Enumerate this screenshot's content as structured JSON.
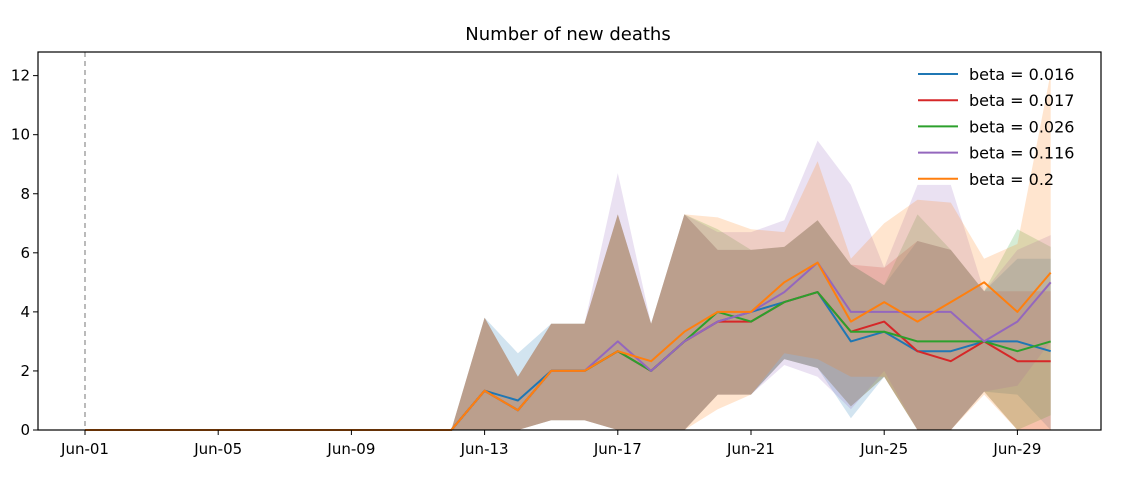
{
  "chart_data": {
    "type": "line",
    "title": "Number of new deaths",
    "xlabel": "",
    "ylabel": "",
    "x": [
      "Jun-01",
      "Jun-02",
      "Jun-03",
      "Jun-04",
      "Jun-05",
      "Jun-06",
      "Jun-07",
      "Jun-08",
      "Jun-09",
      "Jun-10",
      "Jun-11",
      "Jun-12",
      "Jun-13",
      "Jun-14",
      "Jun-15",
      "Jun-16",
      "Jun-17",
      "Jun-18",
      "Jun-19",
      "Jun-20",
      "Jun-21",
      "Jun-22",
      "Jun-23",
      "Jun-24",
      "Jun-25",
      "Jun-26",
      "Jun-27",
      "Jun-28",
      "Jun-29",
      "Jun-30"
    ],
    "x_tick_labels": [
      "Jun-01",
      "Jun-05",
      "Jun-09",
      "Jun-13",
      "Jun-17",
      "Jun-21",
      "Jun-25",
      "Jun-29"
    ],
    "y_ticks": [
      0,
      2,
      4,
      6,
      8,
      10,
      12
    ],
    "ylim": [
      0,
      12.8
    ],
    "vline_x": "Jun-01",
    "legend_position": "top-right",
    "grid": false,
    "series": [
      {
        "name": "beta = 0.016",
        "color": "#1f77b4",
        "values": [
          0,
          0,
          0,
          0,
          0,
          0,
          0,
          0,
          0,
          0,
          0,
          0,
          1.33,
          1.0,
          2.0,
          2.0,
          2.67,
          2.0,
          3.0,
          3.67,
          4.0,
          4.33,
          4.67,
          3.0,
          3.33,
          2.67,
          2.67,
          3.0,
          3.0,
          2.67
        ],
        "lower": [
          0,
          0,
          0,
          0,
          0,
          0,
          0,
          0,
          0,
          0,
          0,
          0,
          0,
          0,
          0.33,
          0.33,
          0,
          0,
          0,
          1.2,
          1.2,
          2.4,
          2.1,
          0.4,
          1.8,
          0,
          0,
          1.3,
          1.2,
          0
        ],
        "upper": [
          0,
          0,
          0,
          0,
          0,
          0,
          0,
          0,
          0,
          0,
          0,
          0,
          3.8,
          2.6,
          3.6,
          3.6,
          7.3,
          3.6,
          7.3,
          6.1,
          6.1,
          6.2,
          7.1,
          5.6,
          4.9,
          6.4,
          6.1,
          4.7,
          5.8,
          5.8
        ]
      },
      {
        "name": "beta = 0.017",
        "color": "#d62728",
        "values": [
          0,
          0,
          0,
          0,
          0,
          0,
          0,
          0,
          0,
          0,
          0,
          0,
          1.33,
          0.67,
          2.0,
          2.0,
          2.67,
          2.0,
          3.0,
          3.67,
          3.67,
          4.33,
          4.67,
          3.33,
          3.67,
          2.67,
          2.33,
          3.0,
          2.33,
          2.33
        ],
        "lower": [
          0,
          0,
          0,
          0,
          0,
          0,
          0,
          0,
          0,
          0,
          0,
          0,
          0,
          0,
          0.33,
          0.33,
          0,
          0,
          0,
          1.2,
          1.2,
          2.4,
          2.1,
          0.8,
          1.8,
          0,
          0,
          1.3,
          0,
          0
        ],
        "upper": [
          0,
          0,
          0,
          0,
          0,
          0,
          0,
          0,
          0,
          0,
          0,
          0,
          3.8,
          1.8,
          3.6,
          3.6,
          7.3,
          3.6,
          7.3,
          6.1,
          6.1,
          6.2,
          7.1,
          5.6,
          5.5,
          6.4,
          6.1,
          4.7,
          4.7,
          4.7
        ]
      },
      {
        "name": "beta = 0.026",
        "color": "#2ca02c",
        "values": [
          0,
          0,
          0,
          0,
          0,
          0,
          0,
          0,
          0,
          0,
          0,
          0,
          1.33,
          0.67,
          2.0,
          2.0,
          2.67,
          2.0,
          3.0,
          4.0,
          3.67,
          4.33,
          4.67,
          3.33,
          3.33,
          3.0,
          3.0,
          3.0,
          2.67,
          3.0
        ],
        "lower": [
          0,
          0,
          0,
          0,
          0,
          0,
          0,
          0,
          0,
          0,
          0,
          0,
          0,
          0,
          0.33,
          0.33,
          0,
          0,
          0,
          1.2,
          1.2,
          2.4,
          2.1,
          0.8,
          1.8,
          0,
          0,
          1.3,
          0,
          0.5
        ],
        "upper": [
          0,
          0,
          0,
          0,
          0,
          0,
          0,
          0,
          0,
          0,
          0,
          0,
          3.8,
          1.8,
          3.6,
          3.6,
          7.3,
          3.6,
          7.3,
          6.8,
          6.1,
          6.2,
          7.1,
          5.6,
          4.9,
          7.3,
          6.1,
          4.7,
          6.8,
          6.2
        ]
      },
      {
        "name": "beta = 0.116",
        "color": "#9467bd",
        "values": [
          0,
          0,
          0,
          0,
          0,
          0,
          0,
          0,
          0,
          0,
          0,
          0,
          1.33,
          0.67,
          2.0,
          2.0,
          3.0,
          2.0,
          3.0,
          3.67,
          4.0,
          4.67,
          5.67,
          4.0,
          4.0,
          4.0,
          4.0,
          3.0,
          3.67,
          5.0
        ],
        "lower": [
          0,
          0,
          0,
          0,
          0,
          0,
          0,
          0,
          0,
          0,
          0,
          0,
          0,
          0,
          0.33,
          0.33,
          0,
          0,
          0,
          1.2,
          1.2,
          2.2,
          1.8,
          0.7,
          2.0,
          0,
          0,
          1.3,
          1.5,
          3.0
        ],
        "upper": [
          0,
          0,
          0,
          0,
          0,
          0,
          0,
          0,
          0,
          0,
          0,
          0,
          3.8,
          1.8,
          3.6,
          3.6,
          8.7,
          3.6,
          7.3,
          6.7,
          6.7,
          7.1,
          9.8,
          8.3,
          5.5,
          8.3,
          8.3,
          4.7,
          6.1,
          6.6
        ]
      },
      {
        "name": "beta = 0.2",
        "color": "#ff7f0e",
        "values": [
          0,
          0,
          0,
          0,
          0,
          0,
          0,
          0,
          0,
          0,
          0,
          0,
          1.33,
          0.67,
          2.0,
          2.0,
          2.67,
          2.33,
          3.33,
          4.0,
          4.0,
          5.0,
          5.67,
          3.67,
          4.33,
          3.67,
          4.33,
          5.0,
          4.0,
          5.33
        ],
        "lower": [
          0,
          0,
          0,
          0,
          0,
          0,
          0,
          0,
          0,
          0,
          0,
          0,
          0,
          0,
          0.33,
          0.33,
          0,
          0,
          0,
          0.7,
          1.2,
          2.6,
          2.4,
          1.8,
          1.8,
          0,
          0,
          1.2,
          0,
          0
        ],
        "upper": [
          0,
          0,
          0,
          0,
          0,
          0,
          0,
          0,
          0,
          0,
          0,
          0,
          3.8,
          1.8,
          3.6,
          3.6,
          7.3,
          3.6,
          7.3,
          7.2,
          6.8,
          6.7,
          9.1,
          5.8,
          7.0,
          7.8,
          7.7,
          5.8,
          6.3,
          12.1
        ]
      }
    ]
  }
}
